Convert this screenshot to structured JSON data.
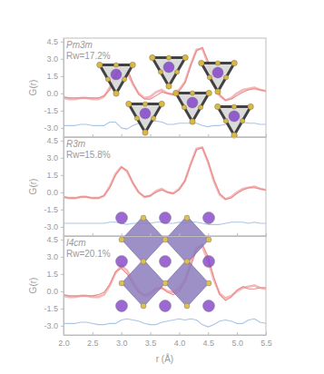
{
  "chart_data": [
    {
      "type": "line",
      "title": "Pm3m",
      "subtitle": "Rw=17.2%",
      "y_label": "G(r)",
      "x": [
        2.0,
        2.1,
        2.2,
        2.3,
        2.4,
        2.5,
        2.6,
        2.7,
        2.8,
        2.9,
        3.0,
        3.1,
        3.2,
        3.3,
        3.4,
        3.5,
        3.6,
        3.7,
        3.8,
        3.9,
        4.0,
        4.1,
        4.2,
        4.3,
        4.4,
        4.5,
        4.6,
        4.7,
        4.8,
        4.9,
        5.0,
        5.1,
        5.2,
        5.3,
        5.4,
        5.5
      ],
      "series": [
        {
          "color": "#f5b8b8",
          "line_style": "solid",
          "values": [
            -0.4,
            -0.5,
            -0.5,
            -0.4,
            -0.4,
            -0.5,
            -0.5,
            -0.3,
            0.5,
            1.6,
            2.2,
            1.8,
            0.8,
            0.0,
            -0.4,
            -0.3,
            0.1,
            0.3,
            0.0,
            -0.1,
            0.3,
            1.0,
            2.5,
            3.8,
            3.9,
            2.6,
            1.0,
            -0.2,
            -0.6,
            -0.4,
            0.0,
            0.3,
            0.4,
            0.5,
            0.3,
            0.2
          ]
        },
        {
          "color": "#e98a8a",
          "line_style": "solid",
          "values": [
            -0.3,
            -0.4,
            -0.4,
            -0.4,
            -0.4,
            -0.4,
            -0.4,
            -0.2,
            0.3,
            1.4,
            2.5,
            2.2,
            0.9,
            -0.1,
            -0.5,
            -0.5,
            -0.2,
            0.1,
            0.0,
            -0.1,
            0.2,
            0.9,
            2.4,
            3.7,
            4.0,
            2.8,
            1.1,
            -0.1,
            -0.6,
            -0.5,
            -0.2,
            0.1,
            0.3,
            0.4,
            0.3,
            0.2
          ]
        },
        {
          "color": "#a9c5e8",
          "line_style": "solid",
          "values": [
            -2.8,
            -2.8,
            -2.8,
            -2.7,
            -2.7,
            -2.8,
            -2.8,
            -2.8,
            -2.5,
            -2.5,
            -3.0,
            -3.1,
            -2.8,
            -2.6,
            -2.6,
            -2.5,
            -2.4,
            -2.5,
            -2.7,
            -2.7,
            -2.6,
            -2.6,
            -2.6,
            -2.6,
            -2.8,
            -2.9,
            -2.8,
            -2.8,
            -2.7,
            -2.6,
            -2.5,
            -2.5,
            -2.6,
            -2.6,
            -2.7,
            -2.7
          ]
        }
      ],
      "xlim": [
        2.0,
        5.5
      ],
      "xticks": [
        {
          "value": 2,
          "label": "2.0"
        },
        2.5,
        {
          "value": 3,
          "label": "3.0"
        },
        3.5,
        {
          "value": 4,
          "label": "4.0"
        },
        4.5,
        {
          "value": 5,
          "label": "5.0"
        },
        5.5
      ],
      "ylim": [
        -3.8,
        4.8
      ],
      "yticks": [
        4.5,
        {
          "value": 3,
          "label": "3.0"
        },
        1.5,
        {
          "value": 0,
          "label": "0.0"
        },
        -1.5,
        {
          "value": -3,
          "label": "-3.0"
        }
      ],
      "tick_labels": "y"
    },
    {
      "type": "line",
      "title": "R3m",
      "subtitle": "Rw=15.8%",
      "y_label": "G(r)",
      "x": [
        2.0,
        2.1,
        2.2,
        2.3,
        2.4,
        2.5,
        2.6,
        2.7,
        2.8,
        2.9,
        3.0,
        3.1,
        3.2,
        3.3,
        3.4,
        3.5,
        3.6,
        3.7,
        3.8,
        3.9,
        4.0,
        4.1,
        4.2,
        4.3,
        4.4,
        4.5,
        4.6,
        4.7,
        4.8,
        4.9,
        5.0,
        5.1,
        5.2,
        5.3,
        5.4,
        5.5
      ],
      "series": [
        {
          "color": "#f5b8b8",
          "line_style": "solid",
          "values": [
            -0.4,
            -0.5,
            -0.5,
            -0.4,
            -0.4,
            -0.5,
            -0.5,
            -0.3,
            0.5,
            1.6,
            2.2,
            1.8,
            0.8,
            0.0,
            -0.4,
            -0.3,
            0.1,
            0.3,
            0.0,
            -0.1,
            0.3,
            1.0,
            2.5,
            3.8,
            3.9,
            2.6,
            1.0,
            -0.2,
            -0.6,
            -0.4,
            0.0,
            0.3,
            0.4,
            0.5,
            0.3,
            0.2
          ]
        },
        {
          "color": "#e98a8a",
          "line_style": "solid",
          "values": [
            -0.4,
            -0.5,
            -0.5,
            -0.4,
            -0.4,
            -0.5,
            -0.5,
            -0.3,
            0.4,
            1.5,
            2.2,
            1.9,
            0.8,
            0.0,
            -0.4,
            -0.3,
            0.0,
            0.2,
            0.0,
            -0.1,
            0.2,
            1.0,
            2.4,
            3.7,
            3.9,
            2.7,
            1.1,
            -0.1,
            -0.6,
            -0.5,
            -0.1,
            0.2,
            0.4,
            0.4,
            0.3,
            0.2
          ]
        },
        {
          "color": "#a9c5e8",
          "line_style": "solid",
          "values": [
            -2.7,
            -2.7,
            -2.7,
            -2.7,
            -2.7,
            -2.7,
            -2.7,
            -2.7,
            -2.6,
            -2.6,
            -2.7,
            -2.8,
            -2.7,
            -2.7,
            -2.7,
            -2.7,
            -2.6,
            -2.6,
            -2.7,
            -2.7,
            -2.6,
            -2.7,
            -2.6,
            -2.6,
            -2.7,
            -2.8,
            -2.8,
            -2.8,
            -2.7,
            -2.6,
            -2.6,
            -2.6,
            -2.7,
            -2.6,
            -2.7,
            -2.7
          ]
        }
      ],
      "xlim": [
        2.0,
        5.5
      ],
      "xticks": [
        {
          "value": 2,
          "label": "2.0"
        },
        2.5,
        {
          "value": 3,
          "label": "3.0"
        },
        3.5,
        {
          "value": 4,
          "label": "4.0"
        },
        4.5,
        {
          "value": 5,
          "label": "5.0"
        },
        5.5
      ],
      "ylim": [
        -3.8,
        4.8
      ],
      "yticks": [
        4.5,
        {
          "value": 3,
          "label": "3.0"
        },
        1.5,
        {
          "value": 0,
          "label": "0.0"
        },
        -1.5,
        {
          "value": -3,
          "label": "-3.0"
        }
      ],
      "tick_labels": "y"
    },
    {
      "type": "line",
      "title": "I4cm",
      "subtitle": "Rw=20.1%",
      "y_label": "G(r)",
      "x_label": "r (Å)",
      "x": [
        2.0,
        2.1,
        2.2,
        2.3,
        2.4,
        2.5,
        2.6,
        2.7,
        2.8,
        2.9,
        3.0,
        3.1,
        3.2,
        3.3,
        3.4,
        3.5,
        3.6,
        3.7,
        3.8,
        3.9,
        4.0,
        4.1,
        4.2,
        4.3,
        4.4,
        4.5,
        4.6,
        4.7,
        4.8,
        4.9,
        5.0,
        5.1,
        5.2,
        5.3,
        5.4,
        5.5
      ],
      "series": [
        {
          "color": "#f5b8b8",
          "line_style": "solid",
          "values": [
            -0.4,
            -0.5,
            -0.5,
            -0.4,
            -0.4,
            -0.5,
            -0.5,
            -0.3,
            0.5,
            1.6,
            2.2,
            1.8,
            0.8,
            0.0,
            -0.4,
            -0.3,
            0.1,
            0.3,
            0.0,
            -0.1,
            0.3,
            1.0,
            2.5,
            3.8,
            3.9,
            2.6,
            1.0,
            -0.2,
            -0.6,
            -0.4,
            0.0,
            0.3,
            0.4,
            0.5,
            0.3,
            0.2
          ]
        },
        {
          "color": "#e98a8a",
          "line_style": "solid",
          "values": [
            -0.3,
            -0.4,
            -0.4,
            -0.4,
            -0.4,
            -0.4,
            -0.3,
            -0.1,
            0.6,
            1.7,
            2.0,
            1.5,
            0.6,
            -0.1,
            -0.3,
            -0.1,
            0.3,
            0.3,
            -0.1,
            -0.3,
            0.0,
            0.8,
            2.2,
            3.6,
            4.1,
            3.0,
            1.2,
            -0.3,
            -0.8,
            -0.5,
            0.1,
            0.4,
            0.2,
            0.2,
            0.3,
            0.3
          ]
        },
        {
          "color": "#a9c5e8",
          "line_style": "solid",
          "values": [
            -2.8,
            -2.8,
            -2.8,
            -2.7,
            -2.7,
            -2.8,
            -2.9,
            -2.9,
            -2.8,
            -2.8,
            -2.5,
            -2.4,
            -2.5,
            -2.6,
            -2.8,
            -2.9,
            -2.9,
            -2.7,
            -2.6,
            -2.5,
            -2.4,
            -2.5,
            -2.4,
            -2.5,
            -2.9,
            -3.1,
            -2.9,
            -2.6,
            -2.5,
            -2.6,
            -2.8,
            -2.8,
            -2.5,
            -2.4,
            -2.7,
            -2.8
          ]
        }
      ],
      "xlim": [
        2.0,
        5.5
      ],
      "xticks": [
        {
          "value": 2,
          "label": "2.0"
        },
        2.5,
        {
          "value": 3,
          "label": "3.0"
        },
        3.5,
        {
          "value": 4,
          "label": "4.0"
        },
        4.5,
        {
          "value": 5,
          "label": "5.0"
        },
        5.5
      ],
      "ylim": [
        -3.8,
        4.8
      ],
      "yticks": [
        4.5,
        {
          "value": 3,
          "label": "3.0"
        },
        1.5,
        {
          "value": 0,
          "label": "0.0"
        },
        -1.5,
        {
          "value": -3,
          "label": "-3.0"
        }
      ]
    }
  ]
}
